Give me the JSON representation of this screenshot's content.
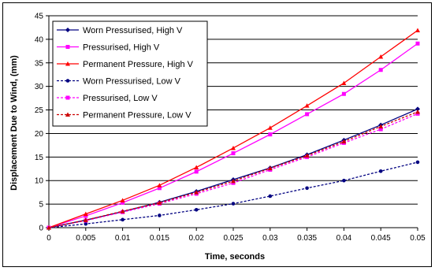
{
  "chart_data": {
    "type": "line",
    "title": "",
    "xlabel": "Time, seconds",
    "ylabel": "Displacement Due to Wind, (mm)",
    "xlim": [
      0,
      0.05
    ],
    "ylim": [
      0,
      45
    ],
    "x": [
      0,
      0.005,
      0.01,
      0.015,
      0.02,
      0.025,
      0.03,
      0.035,
      0.04,
      0.045,
      0.05
    ],
    "x_tick_labels": [
      "0",
      "0.005",
      "0.01",
      "0.015",
      "0.02",
      "0.025",
      "0.03",
      "0.035",
      "0.04",
      "0.045",
      "0.05"
    ],
    "y_ticks": [
      0,
      5,
      10,
      15,
      20,
      25,
      30,
      35,
      40,
      45
    ],
    "grid": "horizontal",
    "legend_position": "top-left",
    "series": [
      {
        "name": "Worn Pressurised, High V",
        "color": "#000080",
        "marker": "diamond",
        "dash": "solid",
        "values": [
          0,
          1.6,
          3.4,
          5.4,
          7.7,
          10.2,
          12.7,
          15.5,
          18.6,
          21.8,
          25.2
        ]
      },
      {
        "name": "Pressurised, High V",
        "color": "#ff00ff",
        "marker": "square",
        "dash": "solid",
        "values": [
          0,
          2.5,
          5.3,
          8.4,
          11.9,
          15.8,
          19.8,
          24.1,
          28.4,
          33.5,
          39.1
        ]
      },
      {
        "name": "Permanent Pressure, High V",
        "color": "#ff0000",
        "marker": "triangle",
        "dash": "solid",
        "values": [
          0,
          2.9,
          5.8,
          9.0,
          12.8,
          16.9,
          21.2,
          25.9,
          30.7,
          36.3,
          41.9
        ]
      },
      {
        "name": "Worn Pressurised, Low V",
        "color": "#000080",
        "marker": "circle",
        "dash": "dashed",
        "values": [
          0,
          0.8,
          1.7,
          2.6,
          3.8,
          5.1,
          6.7,
          8.4,
          10.0,
          12.0,
          13.9
        ]
      },
      {
        "name": "Pressurised, Low V",
        "color": "#ff00ff",
        "marker": "square",
        "dash": "dashed",
        "values": [
          0,
          1.5,
          3.3,
          5.1,
          7.2,
          9.5,
          12.3,
          15.0,
          18.0,
          20.9,
          24.2
        ]
      },
      {
        "name": "Permanent Pressure, Low V",
        "color": "#cc0000",
        "marker": "triangle",
        "dash": "dashed",
        "values": [
          0,
          1.6,
          3.5,
          5.3,
          7.5,
          9.9,
          12.6,
          15.3,
          18.3,
          21.5,
          24.6
        ]
      }
    ]
  }
}
